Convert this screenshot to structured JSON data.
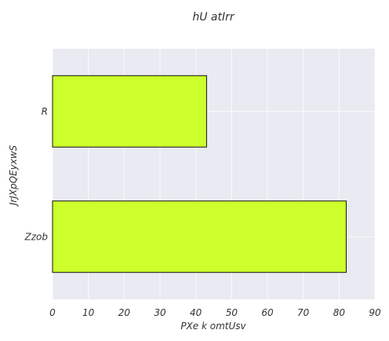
{
  "chart_data": {
    "type": "bar",
    "orientation": "horizontal",
    "title": "hU  atIrr",
    "xlabel": "PXe k omtUsv",
    "ylabel": "JrJXpQEyxwS",
    "categories": [
      "R",
      "Zzob"
    ],
    "values": [
      43,
      82
    ],
    "xlim": [
      0,
      90
    ],
    "xticks": [
      0,
      10,
      20,
      30,
      40,
      50,
      60,
      70,
      80,
      90
    ],
    "grid": true,
    "bar_color": "#ccff2b",
    "plot_background": "#eaeaf2"
  }
}
